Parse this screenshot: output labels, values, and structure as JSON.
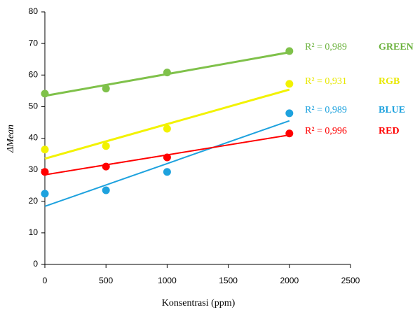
{
  "chart_data": {
    "type": "scatter",
    "x_label": "Konsentrasi (ppm)",
    "y_label": "ΔMean",
    "xlim": [
      0,
      2500
    ],
    "xticks": [
      0,
      500,
      1000,
      1500,
      2000,
      2500
    ],
    "ylim": [
      0,
      80
    ],
    "yticks": [
      0,
      10,
      20,
      30,
      40,
      50,
      60,
      70,
      80
    ],
    "series": [
      {
        "name": "GREEN",
        "color": "#7fc14a",
        "r2_label": "R² = 0,989",
        "x": [
          0,
          500,
          1000,
          2000
        ],
        "values": [
          54.1,
          55.7,
          60.8,
          67.6
        ],
        "trendline": {
          "x": [
            0,
            2000
          ],
          "y": [
            53.4,
            67.2
          ]
        }
      },
      {
        "name": "RGB",
        "color": "#f2f200",
        "r2_label": "R² = 0,931",
        "x": [
          0,
          500,
          1000,
          2000
        ],
        "values": [
          36.4,
          37.5,
          43.0,
          57.2
        ],
        "trendline": {
          "x": [
            0,
            2000
          ],
          "y": [
            33.5,
            55.4
          ]
        }
      },
      {
        "name": "BLUE",
        "color": "#1ea2de",
        "r2_label": "R² = 0,989",
        "x": [
          0,
          500,
          1000,
          2000
        ],
        "values": [
          22.4,
          23.5,
          29.3,
          47.9
        ],
        "trendline": {
          "x": [
            0,
            2000
          ],
          "y": [
            18.4,
            45.5
          ]
        }
      },
      {
        "name": "RED",
        "color": "#ff0000",
        "r2_label": "R² = 0,996",
        "x": [
          0,
          500,
          1000,
          2000
        ],
        "values": [
          29.3,
          31.0,
          33.9,
          41.5
        ],
        "trendline": {
          "x": [
            0,
            2000
          ],
          "y": [
            28.4,
            41.0
          ]
        }
      }
    ]
  }
}
